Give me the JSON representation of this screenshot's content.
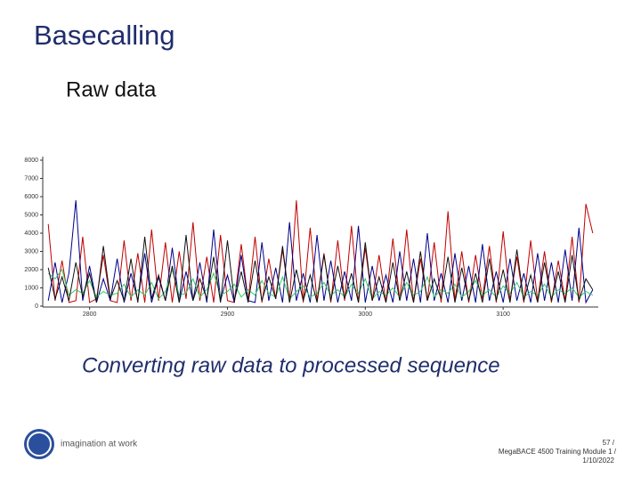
{
  "title": "Basecalling",
  "subtitle": "Raw data",
  "caption": "Converting raw data to processed sequence",
  "brand": "imagination at work",
  "footer": [
    "57 /",
    "MegaBACE 4500 Training Module 1 /",
    "1/10/2022"
  ],
  "chart_data": {
    "type": "line",
    "x": [
      2770,
      2775,
      2780,
      2785,
      2790,
      2795,
      2800,
      2805,
      2810,
      2815,
      2820,
      2825,
      2830,
      2835,
      2840,
      2845,
      2850,
      2855,
      2860,
      2865,
      2870,
      2875,
      2880,
      2885,
      2890,
      2895,
      2900,
      2905,
      2910,
      2915,
      2920,
      2925,
      2930,
      2935,
      2940,
      2945,
      2950,
      2955,
      2960,
      2965,
      2970,
      2975,
      2980,
      2985,
      2990,
      2995,
      3000,
      3005,
      3010,
      3015,
      3020,
      3025,
      3030,
      3035,
      3040,
      3045,
      3050,
      3055,
      3060,
      3065,
      3070,
      3075,
      3080,
      3085,
      3090,
      3095,
      3100,
      3105,
      3110,
      3115,
      3120,
      3125,
      3130,
      3135,
      3140,
      3145,
      3150,
      3155,
      3160,
      3165
    ],
    "series": [
      {
        "color": "#c00000",
        "values": [
          4500,
          300,
          2500,
          200,
          300,
          3800,
          200,
          400,
          2800,
          300,
          200,
          3600,
          300,
          2900,
          200,
          4200,
          300,
          3500,
          200,
          3000,
          400,
          4600,
          300,
          2700,
          200,
          3900,
          300,
          200,
          3400,
          300,
          3800,
          200,
          2600,
          400,
          3100,
          300,
          5800,
          200,
          4300,
          300,
          2900,
          200,
          3600,
          300,
          4400,
          200,
          3200,
          300,
          2800,
          200,
          3700,
          300,
          4200,
          200,
          2600,
          300,
          3500,
          200,
          5200,
          300,
          3000,
          200,
          2800,
          400,
          3300,
          200,
          4100,
          300,
          2700,
          200,
          3600,
          300,
          3000,
          200,
          2500,
          300,
          3800,
          200,
          5600,
          4000
        ]
      },
      {
        "color": "#00008b",
        "values": [
          300,
          2400,
          200,
          1800,
          5800,
          300,
          2200,
          200,
          1500,
          300,
          2600,
          200,
          1800,
          300,
          2900,
          200,
          1600,
          300,
          3200,
          200,
          1900,
          300,
          2400,
          200,
          4200,
          300,
          1700,
          200,
          2800,
          300,
          200,
          3500,
          300,
          2100,
          200,
          4600,
          300,
          1800,
          200,
          3900,
          300,
          2500,
          200,
          1900,
          300,
          4400,
          200,
          2200,
          300,
          1700,
          200,
          3000,
          300,
          2600,
          200,
          4000,
          300,
          1800,
          200,
          2900,
          300,
          2200,
          200,
          3400,
          300,
          1900,
          200,
          2600,
          300,
          1800,
          200,
          2900,
          300,
          2400,
          200,
          3100,
          300,
          4300,
          200,
          900
        ]
      },
      {
        "color": "#33cc66",
        "values": [
          1800,
          1500,
          2000,
          600,
          900,
          700,
          1400,
          500,
          800,
          600,
          700,
          1200,
          500,
          900,
          600,
          1300,
          400,
          800,
          2000,
          600,
          700,
          1500,
          500,
          900,
          1800,
          600,
          800,
          1200,
          500,
          900,
          600,
          1400,
          700,
          500,
          1600,
          400,
          800,
          1100,
          500,
          700,
          1300,
          600,
          900,
          500,
          1200,
          700,
          1500,
          400,
          800,
          600,
          1000,
          500,
          1300,
          600,
          800,
          1600,
          500,
          900,
          700,
          1200,
          500,
          800,
          1400,
          600,
          900,
          500,
          1100,
          700,
          1300,
          500,
          800,
          600,
          1200,
          500,
          900,
          700,
          1000,
          500,
          800,
          600
        ]
      },
      {
        "color": "#111111",
        "values": [
          2100,
          400,
          1600,
          300,
          2400,
          500,
          1800,
          200,
          3300,
          400,
          1400,
          300,
          2600,
          200,
          3800,
          400,
          1700,
          300,
          2200,
          200,
          3900,
          300,
          1500,
          400,
          2700,
          200,
          3600,
          300,
          1900,
          200,
          2500,
          300,
          1600,
          400,
          3300,
          200,
          2000,
          300,
          1700,
          200,
          2800,
          300,
          2200,
          400,
          1800,
          200,
          3500,
          300,
          1600,
          200,
          2400,
          300,
          1900,
          200,
          3000,
          300,
          1500,
          400,
          2700,
          200,
          2100,
          300,
          1800,
          200,
          2600,
          300,
          2000,
          200,
          3100,
          300,
          1700,
          200,
          2400,
          300,
          1900,
          200,
          2800,
          300,
          1500,
          900
        ]
      }
    ],
    "xlim": [
      2766,
      3169
    ],
    "xticks": [
      2800,
      2900,
      3000,
      3100
    ],
    "ylim": [
      0,
      8000
    ],
    "yticks": [
      0,
      1000,
      2000,
      3000,
      4000,
      5000,
      6000,
      7000,
      8000
    ]
  }
}
